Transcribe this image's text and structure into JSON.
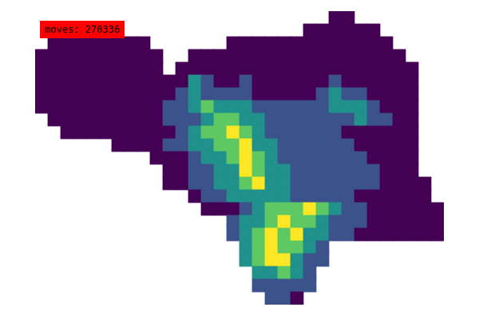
{
  "chart_data": {
    "type": "heatmap",
    "annotation": "moves: 270336",
    "tick_labels": false,
    "cells": [
      [
        null,
        null,
        null,
        null,
        null,
        null,
        null,
        null,
        null,
        null,
        null,
        null,
        null,
        null,
        null,
        null,
        null,
        null,
        null,
        null,
        null,
        null,
        null,
        0,
        0,
        null,
        null,
        null,
        null,
        null,
        null,
        null
      ],
      [
        null,
        null,
        null,
        null,
        null,
        null,
        null,
        null,
        null,
        null,
        null,
        null,
        null,
        null,
        null,
        null,
        null,
        null,
        null,
        null,
        null,
        0,
        0,
        0,
        0,
        0,
        0,
        null,
        null,
        null,
        null,
        null
      ],
      [
        null,
        0,
        0,
        0,
        0,
        0,
        0,
        0,
        0,
        null,
        null,
        null,
        null,
        null,
        null,
        0,
        0,
        0,
        0,
        0,
        0,
        0,
        0,
        0,
        0,
        0,
        0,
        0,
        null,
        null,
        null,
        null
      ],
      [
        0,
        0,
        0,
        0,
        0,
        0,
        0,
        0,
        0,
        0,
        null,
        null,
        0,
        0,
        0,
        0,
        0,
        0,
        0,
        0,
        0,
        0,
        0,
        0,
        0,
        0,
        0,
        0,
        0,
        null,
        null,
        null
      ],
      [
        0,
        0,
        0,
        0,
        0,
        0,
        0,
        0,
        0,
        0,
        null,
        0,
        0,
        0,
        0,
        0,
        0,
        0,
        0,
        0,
        0,
        0,
        0,
        0,
        0,
        0,
        0,
        0,
        0,
        0,
        null,
        null
      ],
      [
        0,
        0,
        0,
        0,
        0,
        0,
        0,
        0,
        0,
        0,
        0,
        0,
        2,
        1,
        0,
        0,
        1,
        0,
        0,
        0,
        0,
        0,
        0,
        1,
        0,
        0,
        0,
        0,
        0,
        0,
        null,
        null
      ],
      [
        0,
        0,
        0,
        0,
        0,
        0,
        0,
        0,
        0,
        0,
        0,
        1,
        2,
        1,
        1,
        1,
        1,
        0,
        0,
        0,
        0,
        0,
        1,
        2,
        1,
        1,
        0,
        0,
        0,
        0,
        null,
        null
      ],
      [
        0,
        0,
        0,
        0,
        0,
        0,
        0,
        0,
        0,
        0,
        1,
        1,
        2,
        3,
        2,
        2,
        2,
        1,
        1,
        1,
        1,
        1,
        1,
        2,
        2,
        2,
        1,
        0,
        0,
        0,
        null,
        null
      ],
      [
        null,
        0,
        0,
        0,
        0,
        0,
        0,
        0,
        0,
        0,
        1,
        1,
        1,
        2,
        3,
        3,
        2,
        2,
        1,
        1,
        1,
        1,
        1,
        1,
        1,
        2,
        1,
        1,
        0,
        0,
        null,
        null
      ],
      [
        null,
        null,
        0,
        0,
        0,
        0,
        0,
        0,
        0,
        0,
        0,
        1,
        2,
        3,
        3,
        4,
        3,
        2,
        1,
        1,
        1,
        1,
        1,
        1,
        0,
        0,
        0,
        0,
        0,
        0,
        null,
        null
      ],
      [
        null,
        null,
        null,
        null,
        null,
        null,
        0,
        0,
        0,
        0,
        1,
        1,
        2,
        2,
        3,
        3,
        4,
        2,
        2,
        1,
        1,
        1,
        1,
        1,
        1,
        0,
        0,
        0,
        0,
        0,
        null,
        null
      ],
      [
        null,
        null,
        null,
        null,
        null,
        null,
        null,
        null,
        null,
        0,
        0,
        0,
        1,
        2,
        2,
        3,
        4,
        3,
        2,
        1,
        1,
        1,
        1,
        1,
        1,
        1,
        0,
        0,
        0,
        0,
        null,
        null
      ],
      [
        null,
        null,
        null,
        null,
        null,
        null,
        null,
        null,
        null,
        null,
        0,
        0,
        1,
        1,
        2,
        2,
        4,
        3,
        2,
        2,
        1,
        1,
        1,
        1,
        1,
        1,
        1,
        0,
        0,
        0,
        null,
        null
      ],
      [
        null,
        null,
        null,
        null,
        null,
        null,
        null,
        null,
        null,
        null,
        0,
        0,
        1,
        1,
        2,
        2,
        3,
        4,
        2,
        2,
        1,
        1,
        1,
        1,
        1,
        1,
        1,
        0,
        0,
        0,
        0,
        null
      ],
      [
        null,
        null,
        null,
        null,
        null,
        null,
        null,
        null,
        null,
        null,
        null,
        null,
        0,
        1,
        1,
        2,
        2,
        2,
        2,
        2,
        1,
        1,
        1,
        1,
        1,
        0,
        0,
        0,
        0,
        0,
        0,
        null
      ],
      [
        null,
        null,
        null,
        null,
        null,
        null,
        null,
        null,
        null,
        null,
        null,
        null,
        null,
        0,
        0,
        0,
        1,
        2,
        3,
        3,
        3,
        4,
        3,
        2,
        1,
        1,
        0,
        0,
        0,
        0,
        0,
        0
      ],
      [
        null,
        null,
        null,
        null,
        null,
        null,
        null,
        null,
        null,
        null,
        null,
        null,
        null,
        null,
        null,
        1,
        2,
        2,
        3,
        4,
        3,
        3,
        2,
        1,
        1,
        1,
        0,
        0,
        0,
        0,
        0,
        0
      ],
      [
        null,
        null,
        null,
        null,
        null,
        null,
        null,
        null,
        null,
        null,
        null,
        null,
        null,
        null,
        null,
        1,
        2,
        3,
        4,
        3,
        4,
        2,
        2,
        1,
        1,
        0,
        0,
        0,
        0,
        0,
        0,
        0
      ],
      [
        null,
        null,
        null,
        null,
        null,
        null,
        null,
        null,
        null,
        null,
        null,
        null,
        null,
        null,
        null,
        null,
        2,
        3,
        4,
        3,
        3,
        2,
        1,
        null,
        null,
        null,
        null,
        null,
        null,
        null,
        null,
        null
      ],
      [
        null,
        null,
        null,
        null,
        null,
        null,
        null,
        null,
        null,
        null,
        null,
        null,
        null,
        null,
        null,
        null,
        2,
        3,
        4,
        4,
        2,
        1,
        1,
        null,
        null,
        null,
        null,
        null,
        null,
        null,
        null,
        null
      ],
      [
        null,
        null,
        null,
        null,
        null,
        null,
        null,
        null,
        null,
        null,
        null,
        null,
        null,
        null,
        null,
        null,
        null,
        2,
        2,
        3,
        2,
        1,
        null,
        null,
        null,
        null,
        null,
        null,
        null,
        null,
        null,
        null
      ],
      [
        null,
        null,
        null,
        null,
        null,
        null,
        null,
        null,
        null,
        null,
        null,
        null,
        null,
        null,
        null,
        null,
        null,
        1,
        1,
        1,
        1,
        1,
        null,
        null,
        null,
        null,
        null,
        null,
        null,
        null,
        null,
        null
      ],
      [
        null,
        null,
        null,
        null,
        null,
        null,
        null,
        null,
        null,
        null,
        null,
        null,
        null,
        null,
        null,
        null,
        null,
        null,
        1,
        1,
        0,
        null,
        null,
        null,
        null,
        null,
        null,
        null,
        null,
        null,
        null,
        null
      ]
    ]
  }
}
